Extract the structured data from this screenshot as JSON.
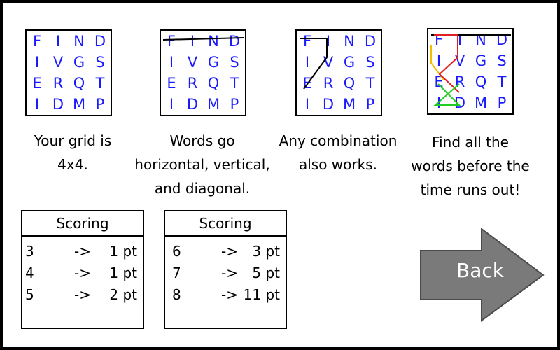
{
  "grid_letters": [
    "F",
    "I",
    "N",
    "D",
    "I",
    "V",
    "G",
    "S",
    "E",
    "R",
    "Q",
    "T",
    "I",
    "D",
    "M",
    "P"
  ],
  "panels": [
    {
      "caption": [
        "Your grid is",
        "4x4."
      ]
    },
    {
      "caption": [
        "Words go",
        "horizontal, vertical,",
        "and diagonal."
      ]
    },
    {
      "caption": [
        "Any combination",
        "also works."
      ]
    },
    {
      "caption": [
        "Find all the",
        "words before the",
        "time runs out!"
      ]
    }
  ],
  "scoring_tables": [
    {
      "title": "Scoring",
      "rows": [
        {
          "length": "3",
          "arrow": "->",
          "points": "1 pt"
        },
        {
          "length": "4",
          "arrow": "->",
          "points": "1 pt"
        },
        {
          "length": "5",
          "arrow": "->",
          "points": "2 pt"
        }
      ]
    },
    {
      "title": "Scoring",
      "rows": [
        {
          "length": "6",
          "arrow": "->",
          "points": "3 pt"
        },
        {
          "length": "7",
          "arrow": "->",
          "points": "5 pt"
        },
        {
          "length": "8",
          "arrow": "->",
          "points": "11 pt"
        }
      ]
    }
  ],
  "back_button": {
    "label": "Back"
  },
  "colors": {
    "letters": "#1a1aff",
    "strike_lines": "#000000",
    "path_red": "#e02020",
    "path_yellow": "#f0c000",
    "path_green": "#22cc22",
    "arrow_fill": "#7a7a7a"
  }
}
